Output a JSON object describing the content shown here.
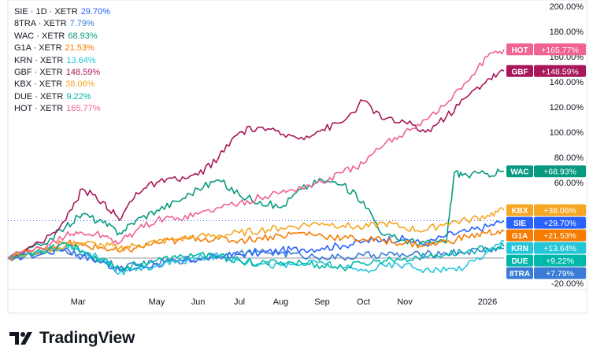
{
  "chart_data": {
    "type": "line",
    "y_unit": "%",
    "ylim": [
      -25,
      205
    ],
    "y_ticks": [
      "200.00%",
      "180.00%",
      "160.00%",
      "140.00%",
      "120.00%",
      "100.00%",
      "80.00%",
      "60.00%",
      "-20.00%"
    ],
    "y_tick_values": [
      200,
      180,
      160,
      140,
      120,
      100,
      80,
      60,
      -20
    ],
    "x_ticks": [
      "Mar",
      "May",
      "Jun",
      "Jul",
      "Aug",
      "Sep",
      "Oct",
      "Nov",
      "2026"
    ],
    "x_tick_positions": [
      1.7,
      3.6,
      4.6,
      5.6,
      6.6,
      7.6,
      8.6,
      9.6,
      11.6
    ],
    "x_range": [
      0,
      12
    ],
    "zero_line": 0,
    "series": [
      {
        "name": "SIE",
        "label": "SIE · 1D · XETR",
        "value": "29.70%",
        "tag": "SIE",
        "tag_value": "+29.70%",
        "color": "#2962ff",
        "points": [
          [
            0,
            0
          ],
          [
            0.8,
            3
          ],
          [
            1.4,
            8
          ],
          [
            1.8,
            1
          ],
          [
            2.3,
            -3
          ],
          [
            2.7,
            -10
          ],
          [
            3.1,
            -8
          ],
          [
            3.6,
            -5
          ],
          [
            4.1,
            -3
          ],
          [
            4.6,
            -1
          ],
          [
            5.1,
            1
          ],
          [
            5.6,
            3
          ],
          [
            6.1,
            4
          ],
          [
            6.6,
            6
          ],
          [
            7.1,
            7
          ],
          [
            7.6,
            8
          ],
          [
            8.1,
            10
          ],
          [
            8.6,
            13
          ],
          [
            9.1,
            15
          ],
          [
            9.6,
            15
          ],
          [
            10.1,
            11
          ],
          [
            10.6,
            18
          ],
          [
            11.1,
            21
          ],
          [
            11.6,
            25
          ],
          [
            12,
            29.7
          ]
        ]
      },
      {
        "name": "8TRA",
        "label": "8TRA · XETR",
        "value": "7.79%",
        "tag": "8TRA",
        "tag_value": "+7.79%",
        "color": "#3a7bd5",
        "points": [
          [
            0,
            0
          ],
          [
            0.8,
            4
          ],
          [
            1.4,
            6
          ],
          [
            1.8,
            2
          ],
          [
            2.3,
            -2
          ],
          [
            2.7,
            -8
          ],
          [
            3.1,
            -6
          ],
          [
            3.6,
            -4
          ],
          [
            4.1,
            -2
          ],
          [
            4.6,
            0
          ],
          [
            5.1,
            2
          ],
          [
            5.6,
            4
          ],
          [
            6.1,
            5
          ],
          [
            6.6,
            4
          ],
          [
            7.1,
            2
          ],
          [
            7.6,
            1
          ],
          [
            8.1,
            0
          ],
          [
            8.6,
            2
          ],
          [
            9.1,
            3
          ],
          [
            9.6,
            2
          ],
          [
            10.1,
            3
          ],
          [
            10.6,
            4
          ],
          [
            11.1,
            5
          ],
          [
            11.6,
            7
          ],
          [
            12,
            7.79
          ]
        ]
      },
      {
        "name": "WAC",
        "label": "WAC · XETR",
        "value": "68.93%",
        "tag": "WAC",
        "tag_value": "+68.93%",
        "color": "#089981",
        "points": [
          [
            0,
            0
          ],
          [
            0.8,
            10
          ],
          [
            1.4,
            25
          ],
          [
            1.8,
            35
          ],
          [
            2.3,
            28
          ],
          [
            2.7,
            20
          ],
          [
            3.1,
            30
          ],
          [
            3.6,
            38
          ],
          [
            4.1,
            45
          ],
          [
            4.6,
            55
          ],
          [
            5.1,
            62
          ],
          [
            5.6,
            50
          ],
          [
            6.1,
            45
          ],
          [
            6.6,
            40
          ],
          [
            7.1,
            55
          ],
          [
            7.6,
            62
          ],
          [
            8.1,
            58
          ],
          [
            8.6,
            45
          ],
          [
            9.1,
            18
          ],
          [
            9.6,
            14
          ],
          [
            10.1,
            12
          ],
          [
            10.6,
            12
          ],
          [
            10.8,
            68
          ],
          [
            11.1,
            66
          ],
          [
            11.6,
            67
          ],
          [
            12,
            68.93
          ]
        ]
      },
      {
        "name": "G1A",
        "label": "G1A · XETR",
        "value": "21.53%",
        "tag": "G1A",
        "tag_value": "+21.53%",
        "color": "#f57c00",
        "points": [
          [
            0,
            0
          ],
          [
            0.8,
            8
          ],
          [
            1.4,
            12
          ],
          [
            1.8,
            10
          ],
          [
            2.3,
            8
          ],
          [
            2.7,
            5
          ],
          [
            3.1,
            8
          ],
          [
            3.6,
            12
          ],
          [
            4.1,
            14
          ],
          [
            4.6,
            16
          ],
          [
            5.1,
            15
          ],
          [
            5.6,
            14
          ],
          [
            6.1,
            16
          ],
          [
            6.6,
            18
          ],
          [
            7.1,
            20
          ],
          [
            7.6,
            18
          ],
          [
            8.1,
            16
          ],
          [
            8.6,
            15
          ],
          [
            9.1,
            14
          ],
          [
            9.6,
            12
          ],
          [
            10.1,
            10
          ],
          [
            10.6,
            13
          ],
          [
            11.1,
            17
          ],
          [
            11.6,
            20
          ],
          [
            12,
            21.53
          ]
        ]
      },
      {
        "name": "KRN",
        "label": "KRN · XETR",
        "value": "13.64%",
        "tag": "KRN",
        "tag_value": "+13.64%",
        "color": "#26c6da",
        "points": [
          [
            0,
            0
          ],
          [
            0.8,
            6
          ],
          [
            1.4,
            10
          ],
          [
            1.8,
            5
          ],
          [
            2.3,
            0
          ],
          [
            2.7,
            -12
          ],
          [
            3.1,
            -10
          ],
          [
            3.6,
            -6
          ],
          [
            4.1,
            -3
          ],
          [
            4.6,
            0
          ],
          [
            5.1,
            2
          ],
          [
            5.6,
            -1
          ],
          [
            6.1,
            -4
          ],
          [
            6.6,
            -6
          ],
          [
            7.1,
            -5
          ],
          [
            7.6,
            -3
          ],
          [
            8.1,
            -8
          ],
          [
            8.6,
            -10
          ],
          [
            9.1,
            -6
          ],
          [
            9.6,
            -5
          ],
          [
            10.1,
            -9
          ],
          [
            10.6,
            -10
          ],
          [
            11.1,
            -6
          ],
          [
            11.6,
            5
          ],
          [
            12,
            13.64
          ]
        ]
      },
      {
        "name": "GBF",
        "label": "GBF · XETR",
        "value": "148.59%",
        "tag": "GBF",
        "tag_value": "+148.59%",
        "color": "#a8175a",
        "points": [
          [
            0,
            0
          ],
          [
            0.8,
            12
          ],
          [
            1.4,
            30
          ],
          [
            1.8,
            55
          ],
          [
            2.3,
            45
          ],
          [
            2.7,
            30
          ],
          [
            3.1,
            52
          ],
          [
            3.6,
            60
          ],
          [
            4.1,
            62
          ],
          [
            4.6,
            66
          ],
          [
            5.1,
            80
          ],
          [
            5.6,
            100
          ],
          [
            6.1,
            104
          ],
          [
            6.6,
            98
          ],
          [
            7.1,
            96
          ],
          [
            7.6,
            102
          ],
          [
            8.1,
            108
          ],
          [
            8.6,
            125
          ],
          [
            9.1,
            110
          ],
          [
            9.6,
            108
          ],
          [
            10.1,
            100
          ],
          [
            10.6,
            112
          ],
          [
            11.1,
            128
          ],
          [
            11.6,
            142
          ],
          [
            12,
            148.59
          ]
        ]
      },
      {
        "name": "KBX",
        "label": "KBX · XETR",
        "value": "38.06%",
        "tag": "KBX",
        "tag_value": "+38.06%",
        "color": "#f5a623",
        "points": [
          [
            0,
            0
          ],
          [
            0.8,
            5
          ],
          [
            1.4,
            10
          ],
          [
            1.8,
            12
          ],
          [
            2.3,
            10
          ],
          [
            2.7,
            8
          ],
          [
            3.1,
            10
          ],
          [
            3.6,
            13
          ],
          [
            4.1,
            15
          ],
          [
            4.6,
            17
          ],
          [
            5.1,
            18
          ],
          [
            5.6,
            20
          ],
          [
            6.1,
            22
          ],
          [
            6.6,
            24
          ],
          [
            7.1,
            26
          ],
          [
            7.6,
            28
          ],
          [
            8.1,
            26
          ],
          [
            8.6,
            24
          ],
          [
            9.1,
            28
          ],
          [
            9.6,
            24
          ],
          [
            10.1,
            22
          ],
          [
            10.6,
            28
          ],
          [
            11.1,
            30
          ],
          [
            11.6,
            34
          ],
          [
            12,
            38.06
          ]
        ]
      },
      {
        "name": "DUE",
        "label": "DUE · XETR",
        "value": "9.22%",
        "tag": "DUE",
        "tag_value": "+9.22%",
        "color": "#00b8a9",
        "points": [
          [
            0,
            0
          ],
          [
            0.8,
            5
          ],
          [
            1.4,
            12
          ],
          [
            1.8,
            6
          ],
          [
            2.3,
            -2
          ],
          [
            2.7,
            -8
          ],
          [
            3.1,
            -5
          ],
          [
            3.6,
            -2
          ],
          [
            4.1,
            0
          ],
          [
            4.6,
            3
          ],
          [
            5.1,
            1
          ],
          [
            5.6,
            -2
          ],
          [
            6.1,
            -5
          ],
          [
            6.6,
            -3
          ],
          [
            7.1,
            -4
          ],
          [
            7.6,
            -6
          ],
          [
            8.1,
            -8
          ],
          [
            8.6,
            -4
          ],
          [
            9.1,
            -2
          ],
          [
            9.6,
            0
          ],
          [
            10.1,
            1
          ],
          [
            10.6,
            3
          ],
          [
            11.1,
            5
          ],
          [
            11.6,
            8
          ],
          [
            12,
            9.22
          ]
        ]
      },
      {
        "name": "HOT",
        "label": "HOT · XETR",
        "value": "165.77%",
        "tag": "HOT",
        "tag_value": "+165.77%",
        "color": "#f06292",
        "points": [
          [
            0,
            0
          ],
          [
            0.8,
            8
          ],
          [
            1.4,
            18
          ],
          [
            1.8,
            20
          ],
          [
            2.3,
            18
          ],
          [
            2.7,
            12
          ],
          [
            3.1,
            22
          ],
          [
            3.6,
            30
          ],
          [
            4.1,
            32
          ],
          [
            4.6,
            35
          ],
          [
            5.1,
            40
          ],
          [
            5.6,
            44
          ],
          [
            6.1,
            48
          ],
          [
            6.6,
            52
          ],
          [
            7.1,
            56
          ],
          [
            7.6,
            60
          ],
          [
            8.1,
            68
          ],
          [
            8.6,
            75
          ],
          [
            9.1,
            90
          ],
          [
            9.6,
            100
          ],
          [
            10.1,
            110
          ],
          [
            10.6,
            122
          ],
          [
            11.1,
            140
          ],
          [
            11.6,
            160
          ],
          [
            12,
            165.77
          ]
        ]
      }
    ]
  },
  "footer": {
    "brand": "TradingView"
  }
}
